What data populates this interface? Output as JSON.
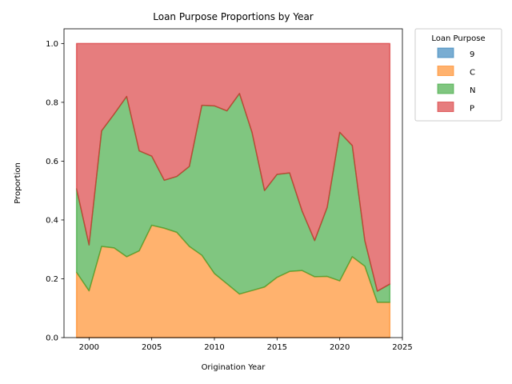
{
  "chart_data": {
    "type": "area",
    "stacked": true,
    "normalized": true,
    "title": "Loan Purpose Proportions by Year",
    "xlabel": "Origination Year",
    "ylabel": "Proportion",
    "xlim": [
      1998,
      2025
    ],
    "ylim": [
      0,
      1.05
    ],
    "xticks": [
      2000,
      2005,
      2010,
      2015,
      2020,
      2025
    ],
    "yticks": [
      0.0,
      0.2,
      0.4,
      0.6,
      0.8,
      1.0
    ],
    "x": [
      1999,
      2000,
      2001,
      2002,
      2003,
      2004,
      2005,
      2006,
      2007,
      2008,
      2009,
      2010,
      2011,
      2012,
      2013,
      2014,
      2015,
      2016,
      2017,
      2018,
      2019,
      2020,
      2021,
      2022,
      2023,
      2024
    ],
    "legend": {
      "title": "Loan Purpose",
      "placement": "outside-upper-right"
    },
    "series": [
      {
        "name": "9",
        "color": "#1f77b4",
        "values": [
          0,
          0,
          0,
          0,
          0,
          0,
          0,
          0,
          0,
          0,
          0,
          0,
          0,
          0,
          0,
          0,
          0,
          0,
          0,
          0,
          0,
          0,
          0,
          0,
          0,
          0
        ]
      },
      {
        "name": "C",
        "color": "#ff7f0e",
        "values": [
          0.222,
          0.159,
          0.31,
          0.305,
          0.275,
          0.295,
          0.382,
          0.372,
          0.358,
          0.31,
          0.28,
          0.218,
          0.183,
          0.148,
          0.16,
          0.172,
          0.205,
          0.225,
          0.228,
          0.207,
          0.208,
          0.193,
          0.275,
          0.243,
          0.12,
          0.12
        ]
      },
      {
        "name": "N",
        "color": "#2ca02c",
        "values": [
          0.284,
          0.156,
          0.393,
          0.455,
          0.545,
          0.34,
          0.235,
          0.163,
          0.19,
          0.272,
          0.51,
          0.57,
          0.588,
          0.682,
          0.538,
          0.328,
          0.35,
          0.335,
          0.202,
          0.123,
          0.235,
          0.505,
          0.378,
          0.087,
          0.038,
          0.062
        ]
      },
      {
        "name": "P",
        "color": "#d62728",
        "values": [
          0.494,
          0.685,
          0.297,
          0.24,
          0.18,
          0.365,
          0.383,
          0.465,
          0.452,
          0.418,
          0.21,
          0.212,
          0.229,
          0.17,
          0.302,
          0.5,
          0.445,
          0.44,
          0.57,
          0.67,
          0.557,
          0.302,
          0.347,
          0.67,
          0.842,
          0.818
        ]
      }
    ]
  }
}
